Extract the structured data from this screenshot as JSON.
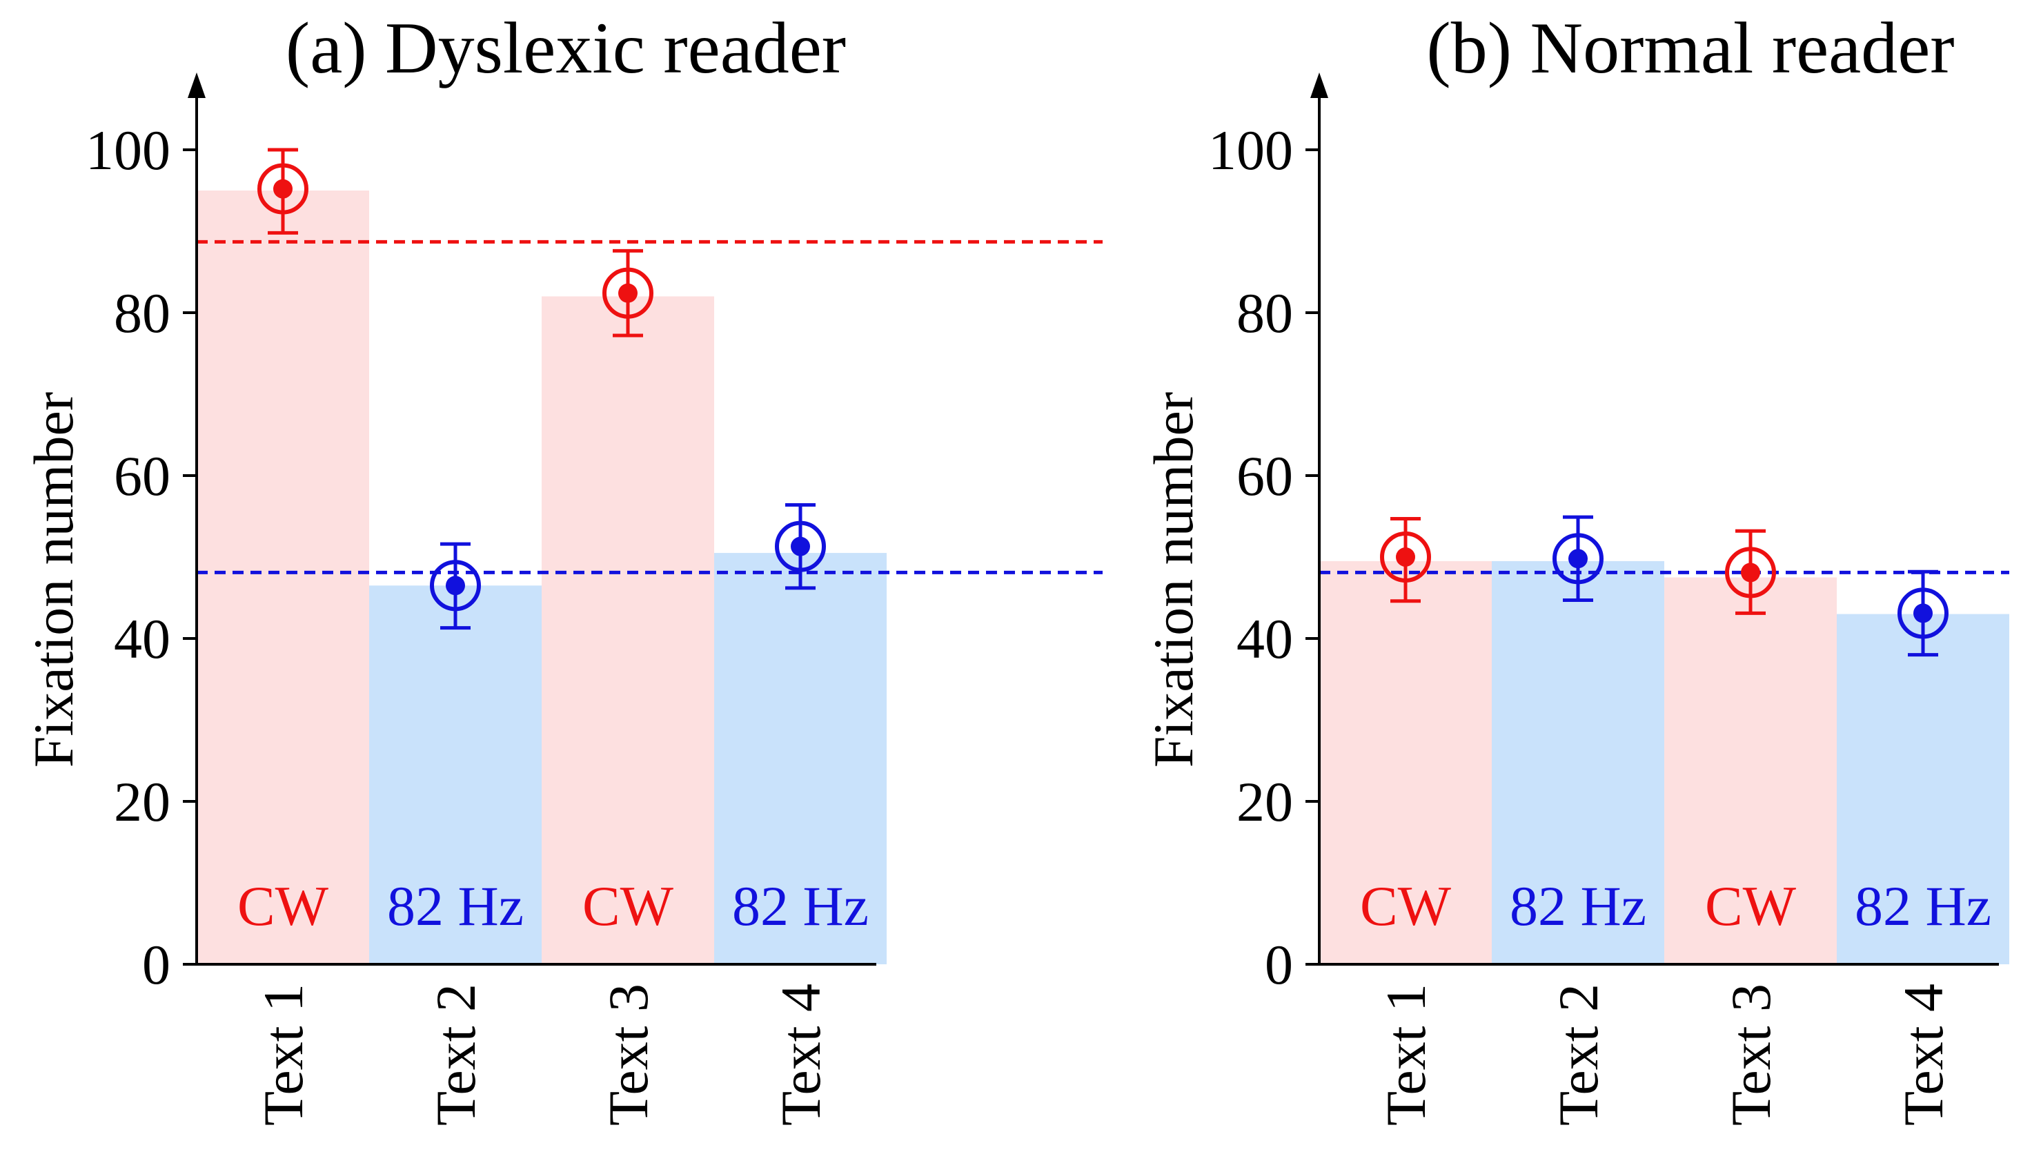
{
  "chart_data": [
    {
      "type": "bar",
      "title": "(a) Dyslexic reader",
      "ylabel": "Fixation number",
      "xlabel": "",
      "ylim": [
        0,
        110
      ],
      "yticks": [
        0,
        20,
        40,
        60,
        80,
        100
      ],
      "categories": [
        "Text 1",
        "Text 2",
        "Text 3",
        "Text 4"
      ],
      "conditions": [
        "CW",
        "82 Hz",
        "CW",
        "82 Hz"
      ],
      "values": [
        95,
        46.5,
        82,
        50.5
      ],
      "points": [
        95.2,
        46.5,
        82.4,
        51.3
      ],
      "err_low": [
        89.8,
        41.3,
        77.2,
        46.2
      ],
      "err_high": [
        100.0,
        51.6,
        87.6,
        56.4
      ],
      "mean_lines": [
        {
          "label": "CW mean",
          "value": 88.7,
          "color": "#ee1111"
        },
        {
          "label": "82 Hz mean",
          "value": 48.1,
          "color": "#1111dd"
        }
      ]
    },
    {
      "type": "bar",
      "title": "(b) Normal reader",
      "ylabel": "Fixation number",
      "xlabel": "",
      "ylim": [
        0,
        110
      ],
      "yticks": [
        0,
        20,
        40,
        60,
        80,
        100
      ],
      "categories": [
        "Text 1",
        "Text 2",
        "Text 3",
        "Text 4"
      ],
      "conditions": [
        "CW",
        "82 Hz",
        "CW",
        "82 Hz"
      ],
      "values": [
        49.5,
        49.5,
        47.5,
        43
      ],
      "points": [
        50.0,
        49.8,
        48.1,
        43.1
      ],
      "err_low": [
        44.6,
        44.7,
        43.1,
        38.0
      ],
      "err_high": [
        54.7,
        54.9,
        53.2,
        48.2
      ],
      "mean_lines": [
        {
          "label": "82 Hz mean",
          "value": 48.1,
          "color": "#1111dd"
        }
      ]
    }
  ],
  "colors": {
    "cw_bar": "#fde0e0",
    "hz_bar": "#c9e2fb",
    "cw_mark": "#ee1111",
    "hz_mark": "#1111dd",
    "axis": "#000000"
  }
}
